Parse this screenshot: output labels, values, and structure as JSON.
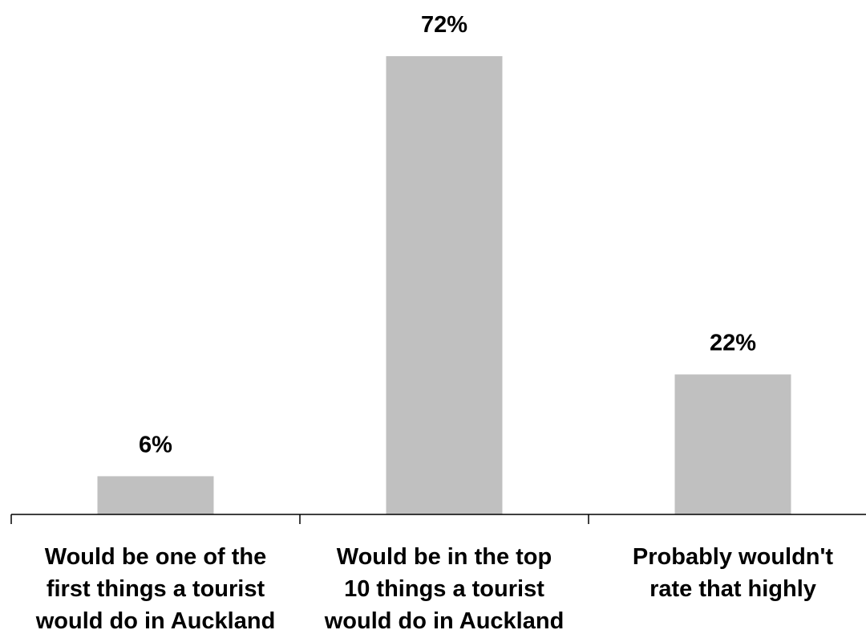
{
  "chart_data": {
    "type": "bar",
    "categories": [
      [
        "Would be one of the",
        "first things a tourist",
        "would do in Auckland"
      ],
      [
        "Would be in the top",
        "10 things a tourist",
        "would do in Auckland"
      ],
      [
        "Probably wouldn't",
        "rate that highly"
      ]
    ],
    "values": [
      6,
      72,
      22
    ],
    "data_labels": [
      "6%",
      "72%",
      "22%"
    ],
    "unit": "%",
    "ylim": [
      0,
      80
    ],
    "grid": false,
    "legend": "none",
    "title": "",
    "xlabel": "",
    "ylabel": "",
    "colors": {
      "bar": "#c0c0c0",
      "axis": "#000000",
      "text": "#000000"
    }
  }
}
